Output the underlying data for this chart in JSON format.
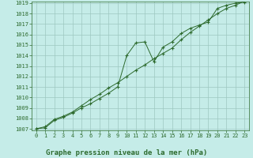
{
  "line1_x": [
    0,
    1,
    2,
    3,
    4,
    5,
    6,
    7,
    8,
    9,
    10,
    11,
    12,
    13,
    14,
    15,
    16,
    17,
    18,
    19,
    20,
    21,
    22,
    23
  ],
  "line1_y": [
    1007.0,
    1007.1,
    1007.8,
    1008.1,
    1008.5,
    1009.0,
    1009.4,
    1009.9,
    1010.4,
    1011.0,
    1014.0,
    1015.2,
    1015.3,
    1013.4,
    1014.8,
    1015.3,
    1016.1,
    1016.6,
    1016.9,
    1017.2,
    1018.5,
    1018.8,
    1019.0,
    1019.1
  ],
  "line2_x": [
    0,
    1,
    2,
    3,
    4,
    5,
    6,
    7,
    8,
    9,
    10,
    11,
    12,
    13,
    14,
    15,
    16,
    17,
    18,
    19,
    20,
    21,
    22,
    23
  ],
  "line2_y": [
    1007.0,
    1007.2,
    1007.9,
    1008.2,
    1008.6,
    1009.2,
    1009.8,
    1010.3,
    1010.9,
    1011.4,
    1012.0,
    1012.6,
    1013.1,
    1013.7,
    1014.2,
    1014.7,
    1015.5,
    1016.2,
    1016.8,
    1017.4,
    1018.0,
    1018.5,
    1018.8,
    1019.2
  ],
  "line_color": "#2d6a2d",
  "bg_color": "#c5ece8",
  "grid_color": "#9dc8c0",
  "xlabel": "Graphe pression niveau de la mer (hPa)",
  "ylim": [
    1007,
    1019
  ],
  "xlim": [
    0,
    23
  ],
  "yticks": [
    1007,
    1008,
    1009,
    1010,
    1011,
    1012,
    1013,
    1014,
    1015,
    1016,
    1017,
    1018,
    1019
  ],
  "xticks": [
    0,
    1,
    2,
    3,
    4,
    5,
    6,
    7,
    8,
    9,
    10,
    11,
    12,
    13,
    14,
    15,
    16,
    17,
    18,
    19,
    20,
    21,
    22,
    23
  ],
  "tick_fontsize": 5.0,
  "xlabel_fontsize": 6.5
}
